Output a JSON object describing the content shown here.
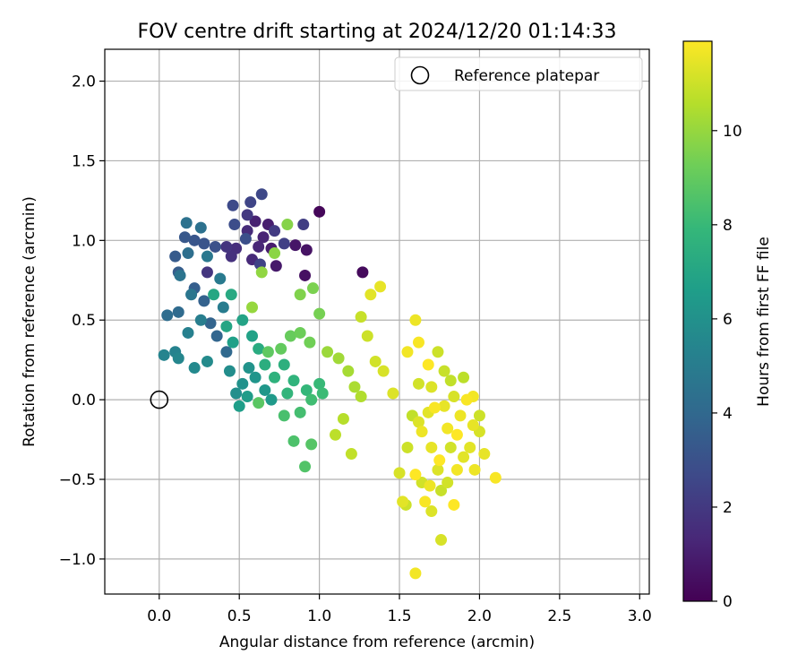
{
  "chart_data": {
    "type": "scatter",
    "title": "FOV centre drift starting at 2024/12/20 01:14:33",
    "xlabel": "Angular distance from reference (arcmin)",
    "ylabel": "Rotation from reference (arcmin)",
    "xlim": [
      -0.34,
      3.06
    ],
    "ylim": [
      -1.22,
      2.2
    ],
    "xticks": [
      0.0,
      0.5,
      1.0,
      1.5,
      2.0,
      2.5,
      3.0
    ],
    "xtick_labels": [
      "0.0",
      "0.5",
      "1.0",
      "1.5",
      "2.0",
      "2.5",
      "3.0"
    ],
    "yticks": [
      -1.0,
      -0.5,
      0.0,
      0.5,
      1.0,
      1.5,
      2.0
    ],
    "ytick_labels": [
      "−1.0",
      "−0.5",
      "0.0",
      "0.5",
      "1.0",
      "1.5",
      "2.0"
    ],
    "grid": true,
    "legend": {
      "position": "top-right",
      "entries": [
        {
          "label": "Reference platepar",
          "marker": "open-circle"
        }
      ]
    },
    "reference_point": {
      "x": 0.0,
      "y": 0.0
    },
    "colorbar": {
      "label": "Hours from first FF file",
      "colormap": "viridis",
      "range": [
        0,
        11.9
      ],
      "ticks": [
        0,
        2,
        4,
        6,
        8,
        10
      ],
      "tick_labels": [
        "0",
        "2",
        "4",
        "6",
        "8",
        "10"
      ]
    },
    "colormap_stops": [
      "#440154",
      "#482878",
      "#3e4989",
      "#31688e",
      "#26828e",
      "#1f9e89",
      "#35b779",
      "#6ece58",
      "#b5de2b",
      "#fde725"
    ],
    "series": [
      {
        "values": [
          {
            "x": 1.0,
            "y": 1.18,
            "h": 0.2
          },
          {
            "x": 1.27,
            "y": 0.8,
            "h": 0.3
          },
          {
            "x": 0.91,
            "y": 0.78,
            "h": 0.5
          },
          {
            "x": 0.92,
            "y": 0.94,
            "h": 0.6
          },
          {
            "x": 0.85,
            "y": 0.97,
            "h": 0.7
          },
          {
            "x": 0.73,
            "y": 0.84,
            "h": 0.8
          },
          {
            "x": 0.7,
            "y": 0.95,
            "h": 0.9
          },
          {
            "x": 0.68,
            "y": 1.1,
            "h": 1.0
          },
          {
            "x": 0.6,
            "y": 1.12,
            "h": 1.1
          },
          {
            "x": 0.65,
            "y": 1.02,
            "h": 1.2
          },
          {
            "x": 0.62,
            "y": 0.96,
            "h": 1.3
          },
          {
            "x": 0.58,
            "y": 0.88,
            "h": 1.4
          },
          {
            "x": 0.55,
            "y": 1.06,
            "h": 1.5
          },
          {
            "x": 0.48,
            "y": 0.95,
            "h": 1.6
          },
          {
            "x": 0.45,
            "y": 0.9,
            "h": 1.7
          },
          {
            "x": 0.42,
            "y": 0.96,
            "h": 1.8
          },
          {
            "x": 0.3,
            "y": 0.8,
            "h": 1.9
          },
          {
            "x": 0.55,
            "y": 1.16,
            "h": 2.0
          },
          {
            "x": 0.72,
            "y": 1.06,
            "h": 2.1
          },
          {
            "x": 0.9,
            "y": 1.1,
            "h": 2.2
          },
          {
            "x": 0.78,
            "y": 0.98,
            "h": 2.3
          },
          {
            "x": 0.63,
            "y": 0.85,
            "h": 2.4
          },
          {
            "x": 0.57,
            "y": 1.24,
            "h": 2.5
          },
          {
            "x": 0.64,
            "y": 1.29,
            "h": 2.6
          },
          {
            "x": 0.46,
            "y": 1.22,
            "h": 2.7
          },
          {
            "x": 0.47,
            "y": 1.1,
            "h": 2.8
          },
          {
            "x": 0.54,
            "y": 1.01,
            "h": 2.9
          },
          {
            "x": 0.35,
            "y": 0.96,
            "h": 3.0
          },
          {
            "x": 0.28,
            "y": 0.98,
            "h": 3.1
          },
          {
            "x": 0.22,
            "y": 1.0,
            "h": 3.2
          },
          {
            "x": 0.16,
            "y": 1.02,
            "h": 3.3
          },
          {
            "x": 0.1,
            "y": 0.9,
            "h": 3.4
          },
          {
            "x": 0.12,
            "y": 0.8,
            "h": 3.5
          },
          {
            "x": 0.22,
            "y": 0.7,
            "h": 3.6
          },
          {
            "x": 0.28,
            "y": 0.62,
            "h": 3.7
          },
          {
            "x": 0.32,
            "y": 0.48,
            "h": 3.8
          },
          {
            "x": 0.36,
            "y": 0.4,
            "h": 3.9
          },
          {
            "x": 0.42,
            "y": 0.3,
            "h": 4.0
          },
          {
            "x": 0.12,
            "y": 0.55,
            "h": 4.1
          },
          {
            "x": 0.05,
            "y": 0.53,
            "h": 4.2
          },
          {
            "x": 0.18,
            "y": 0.92,
            "h": 4.3
          },
          {
            "x": 0.26,
            "y": 1.08,
            "h": 4.4
          },
          {
            "x": 0.17,
            "y": 1.11,
            "h": 4.5
          },
          {
            "x": 0.13,
            "y": 0.78,
            "h": 4.6
          },
          {
            "x": 0.2,
            "y": 0.66,
            "h": 4.7
          },
          {
            "x": 0.3,
            "y": 0.9,
            "h": 4.8
          },
          {
            "x": 0.38,
            "y": 0.76,
            "h": 4.9
          },
          {
            "x": 0.4,
            "y": 0.58,
            "h": 5.0
          },
          {
            "x": 0.26,
            "y": 0.5,
            "h": 5.1
          },
          {
            "x": 0.18,
            "y": 0.42,
            "h": 5.2
          },
          {
            "x": 0.1,
            "y": 0.3,
            "h": 5.3
          },
          {
            "x": 0.03,
            "y": 0.28,
            "h": 5.4
          },
          {
            "x": 0.12,
            "y": 0.26,
            "h": 5.5
          },
          {
            "x": 0.22,
            "y": 0.2,
            "h": 5.6
          },
          {
            "x": 0.3,
            "y": 0.24,
            "h": 5.7
          },
          {
            "x": 0.44,
            "y": 0.18,
            "h": 5.8
          },
          {
            "x": 0.48,
            "y": 0.04,
            "h": 5.9
          },
          {
            "x": 0.52,
            "y": 0.1,
            "h": 6.0
          },
          {
            "x": 0.56,
            "y": 0.2,
            "h": 6.1
          },
          {
            "x": 0.6,
            "y": 0.14,
            "h": 6.2
          },
          {
            "x": 0.66,
            "y": 0.06,
            "h": 6.3
          },
          {
            "x": 0.7,
            "y": 0.0,
            "h": 6.4
          },
          {
            "x": 0.55,
            "y": 0.02,
            "h": 6.5
          },
          {
            "x": 0.5,
            "y": -0.04,
            "h": 6.6
          },
          {
            "x": 0.46,
            "y": 0.36,
            "h": 6.7
          },
          {
            "x": 0.58,
            "y": 0.4,
            "h": 6.8
          },
          {
            "x": 0.52,
            "y": 0.5,
            "h": 6.9
          },
          {
            "x": 0.42,
            "y": 0.46,
            "h": 7.0
          },
          {
            "x": 0.34,
            "y": 0.66,
            "h": 7.1
          },
          {
            "x": 0.45,
            "y": 0.66,
            "h": 7.2
          },
          {
            "x": 0.62,
            "y": 0.32,
            "h": 7.3
          },
          {
            "x": 0.66,
            "y": 0.22,
            "h": 7.4
          },
          {
            "x": 0.78,
            "y": 0.22,
            "h": 7.5
          },
          {
            "x": 0.72,
            "y": 0.14,
            "h": 7.6
          },
          {
            "x": 0.84,
            "y": 0.12,
            "h": 7.7
          },
          {
            "x": 0.8,
            "y": 0.04,
            "h": 7.8
          },
          {
            "x": 0.92,
            "y": 0.06,
            "h": 7.9
          },
          {
            "x": 1.0,
            "y": 0.1,
            "h": 8.0
          },
          {
            "x": 1.02,
            "y": 0.04,
            "h": 8.1
          },
          {
            "x": 0.95,
            "y": 0.0,
            "h": 8.2
          },
          {
            "x": 0.88,
            "y": -0.08,
            "h": 8.3
          },
          {
            "x": 0.78,
            "y": -0.1,
            "h": 8.4
          },
          {
            "x": 0.84,
            "y": -0.26,
            "h": 8.5
          },
          {
            "x": 0.91,
            "y": -0.42,
            "h": 8.6
          },
          {
            "x": 0.95,
            "y": -0.28,
            "h": 8.7
          },
          {
            "x": 0.62,
            "y": -0.02,
            "h": 8.8
          },
          {
            "x": 0.68,
            "y": 0.3,
            "h": 8.9
          },
          {
            "x": 0.76,
            "y": 0.32,
            "h": 9.0
          },
          {
            "x": 0.82,
            "y": 0.4,
            "h": 9.1
          },
          {
            "x": 0.88,
            "y": 0.42,
            "h": 9.2
          },
          {
            "x": 0.94,
            "y": 0.36,
            "h": 9.3
          },
          {
            "x": 1.0,
            "y": 0.54,
            "h": 9.4
          },
          {
            "x": 0.96,
            "y": 0.7,
            "h": 9.5
          },
          {
            "x": 0.88,
            "y": 0.66,
            "h": 9.6
          },
          {
            "x": 0.8,
            "y": 1.1,
            "h": 9.7
          },
          {
            "x": 0.72,
            "y": 0.92,
            "h": 9.8
          },
          {
            "x": 0.64,
            "y": 0.8,
            "h": 9.9
          },
          {
            "x": 0.58,
            "y": 0.58,
            "h": 10.0
          },
          {
            "x": 1.05,
            "y": 0.3,
            "h": 10.1
          },
          {
            "x": 1.12,
            "y": 0.26,
            "h": 10.2
          },
          {
            "x": 1.18,
            "y": 0.18,
            "h": 10.3
          },
          {
            "x": 1.22,
            "y": 0.08,
            "h": 10.4
          },
          {
            "x": 1.26,
            "y": 0.02,
            "h": 10.5
          },
          {
            "x": 1.15,
            "y": -0.12,
            "h": 10.6
          },
          {
            "x": 1.1,
            "y": -0.22,
            "h": 10.7
          },
          {
            "x": 1.2,
            "y": -0.34,
            "h": 10.8
          },
          {
            "x": 1.26,
            "y": 0.52,
            "h": 10.9
          },
          {
            "x": 1.3,
            "y": 0.4,
            "h": 11.0
          },
          {
            "x": 1.35,
            "y": 0.24,
            "h": 11.1
          },
          {
            "x": 1.4,
            "y": 0.18,
            "h": 11.2
          },
          {
            "x": 1.46,
            "y": 0.04,
            "h": 11.3
          },
          {
            "x": 1.32,
            "y": 0.66,
            "h": 11.4
          },
          {
            "x": 1.38,
            "y": 0.71,
            "h": 11.5
          },
          {
            "x": 1.6,
            "y": 0.5,
            "h": 11.6
          },
          {
            "x": 1.55,
            "y": 0.3,
            "h": 11.7
          },
          {
            "x": 1.62,
            "y": 0.36,
            "h": 11.8
          },
          {
            "x": 1.68,
            "y": 0.22,
            "h": 11.9
          },
          {
            "x": 1.74,
            "y": 0.3,
            "h": 11.0
          },
          {
            "x": 1.78,
            "y": 0.18,
            "h": 10.9
          },
          {
            "x": 1.82,
            "y": 0.12,
            "h": 10.8
          },
          {
            "x": 1.9,
            "y": 0.14,
            "h": 10.7
          },
          {
            "x": 1.92,
            "y": 0.0,
            "h": 11.8
          },
          {
            "x": 1.88,
            "y": -0.1,
            "h": 11.6
          },
          {
            "x": 1.96,
            "y": -0.16,
            "h": 11.5
          },
          {
            "x": 2.0,
            "y": -0.2,
            "h": 11.2
          },
          {
            "x": 1.94,
            "y": -0.3,
            "h": 11.4
          },
          {
            "x": 1.86,
            "y": -0.44,
            "h": 11.7
          },
          {
            "x": 1.8,
            "y": -0.52,
            "h": 11.1
          },
          {
            "x": 1.74,
            "y": -0.44,
            "h": 11.3
          },
          {
            "x": 1.7,
            "y": -0.3,
            "h": 11.5
          },
          {
            "x": 1.64,
            "y": -0.2,
            "h": 11.6
          },
          {
            "x": 1.58,
            "y": -0.1,
            "h": 10.8
          },
          {
            "x": 1.55,
            "y": -0.3,
            "h": 11.0
          },
          {
            "x": 1.5,
            "y": -0.46,
            "h": 11.2
          },
          {
            "x": 1.52,
            "y": -0.64,
            "h": 11.4
          },
          {
            "x": 1.6,
            "y": -0.47,
            "h": 11.9
          },
          {
            "x": 1.64,
            "y": -0.52,
            "h": 11.1
          },
          {
            "x": 1.66,
            "y": -0.64,
            "h": 11.8
          },
          {
            "x": 1.7,
            "y": -0.7,
            "h": 11.3
          },
          {
            "x": 1.76,
            "y": -0.57,
            "h": 10.9
          },
          {
            "x": 1.84,
            "y": -0.66,
            "h": 11.9
          },
          {
            "x": 1.76,
            "y": -0.88,
            "h": 11.2
          },
          {
            "x": 1.6,
            "y": -1.09,
            "h": 11.7
          },
          {
            "x": 2.1,
            "y": -0.49,
            "h": 11.8
          },
          {
            "x": 2.03,
            "y": -0.34,
            "h": 11.5
          },
          {
            "x": 1.97,
            "y": -0.44,
            "h": 11.6
          },
          {
            "x": 1.86,
            "y": -0.22,
            "h": 11.9
          },
          {
            "x": 1.8,
            "y": -0.18,
            "h": 11.7
          },
          {
            "x": 1.72,
            "y": -0.05,
            "h": 11.8
          },
          {
            "x": 1.68,
            "y": -0.08,
            "h": 11.4
          },
          {
            "x": 1.62,
            "y": -0.14,
            "h": 11.3
          },
          {
            "x": 1.75,
            "y": -0.38,
            "h": 11.9
          },
          {
            "x": 1.82,
            "y": -0.3,
            "h": 11.1
          },
          {
            "x": 1.9,
            "y": -0.36,
            "h": 11.4
          },
          {
            "x": 2.0,
            "y": -0.1,
            "h": 11.0
          },
          {
            "x": 1.96,
            "y": 0.02,
            "h": 11.7
          },
          {
            "x": 1.84,
            "y": 0.02,
            "h": 11.2
          },
          {
            "x": 1.78,
            "y": -0.04,
            "h": 11.5
          },
          {
            "x": 1.62,
            "y": 0.1,
            "h": 11.1
          },
          {
            "x": 1.7,
            "y": 0.08,
            "h": 11.3
          },
          {
            "x": 1.54,
            "y": -0.66,
            "h": 11.0
          },
          {
            "x": 1.69,
            "y": -0.54,
            "h": 11.6
          }
        ]
      }
    ]
  }
}
